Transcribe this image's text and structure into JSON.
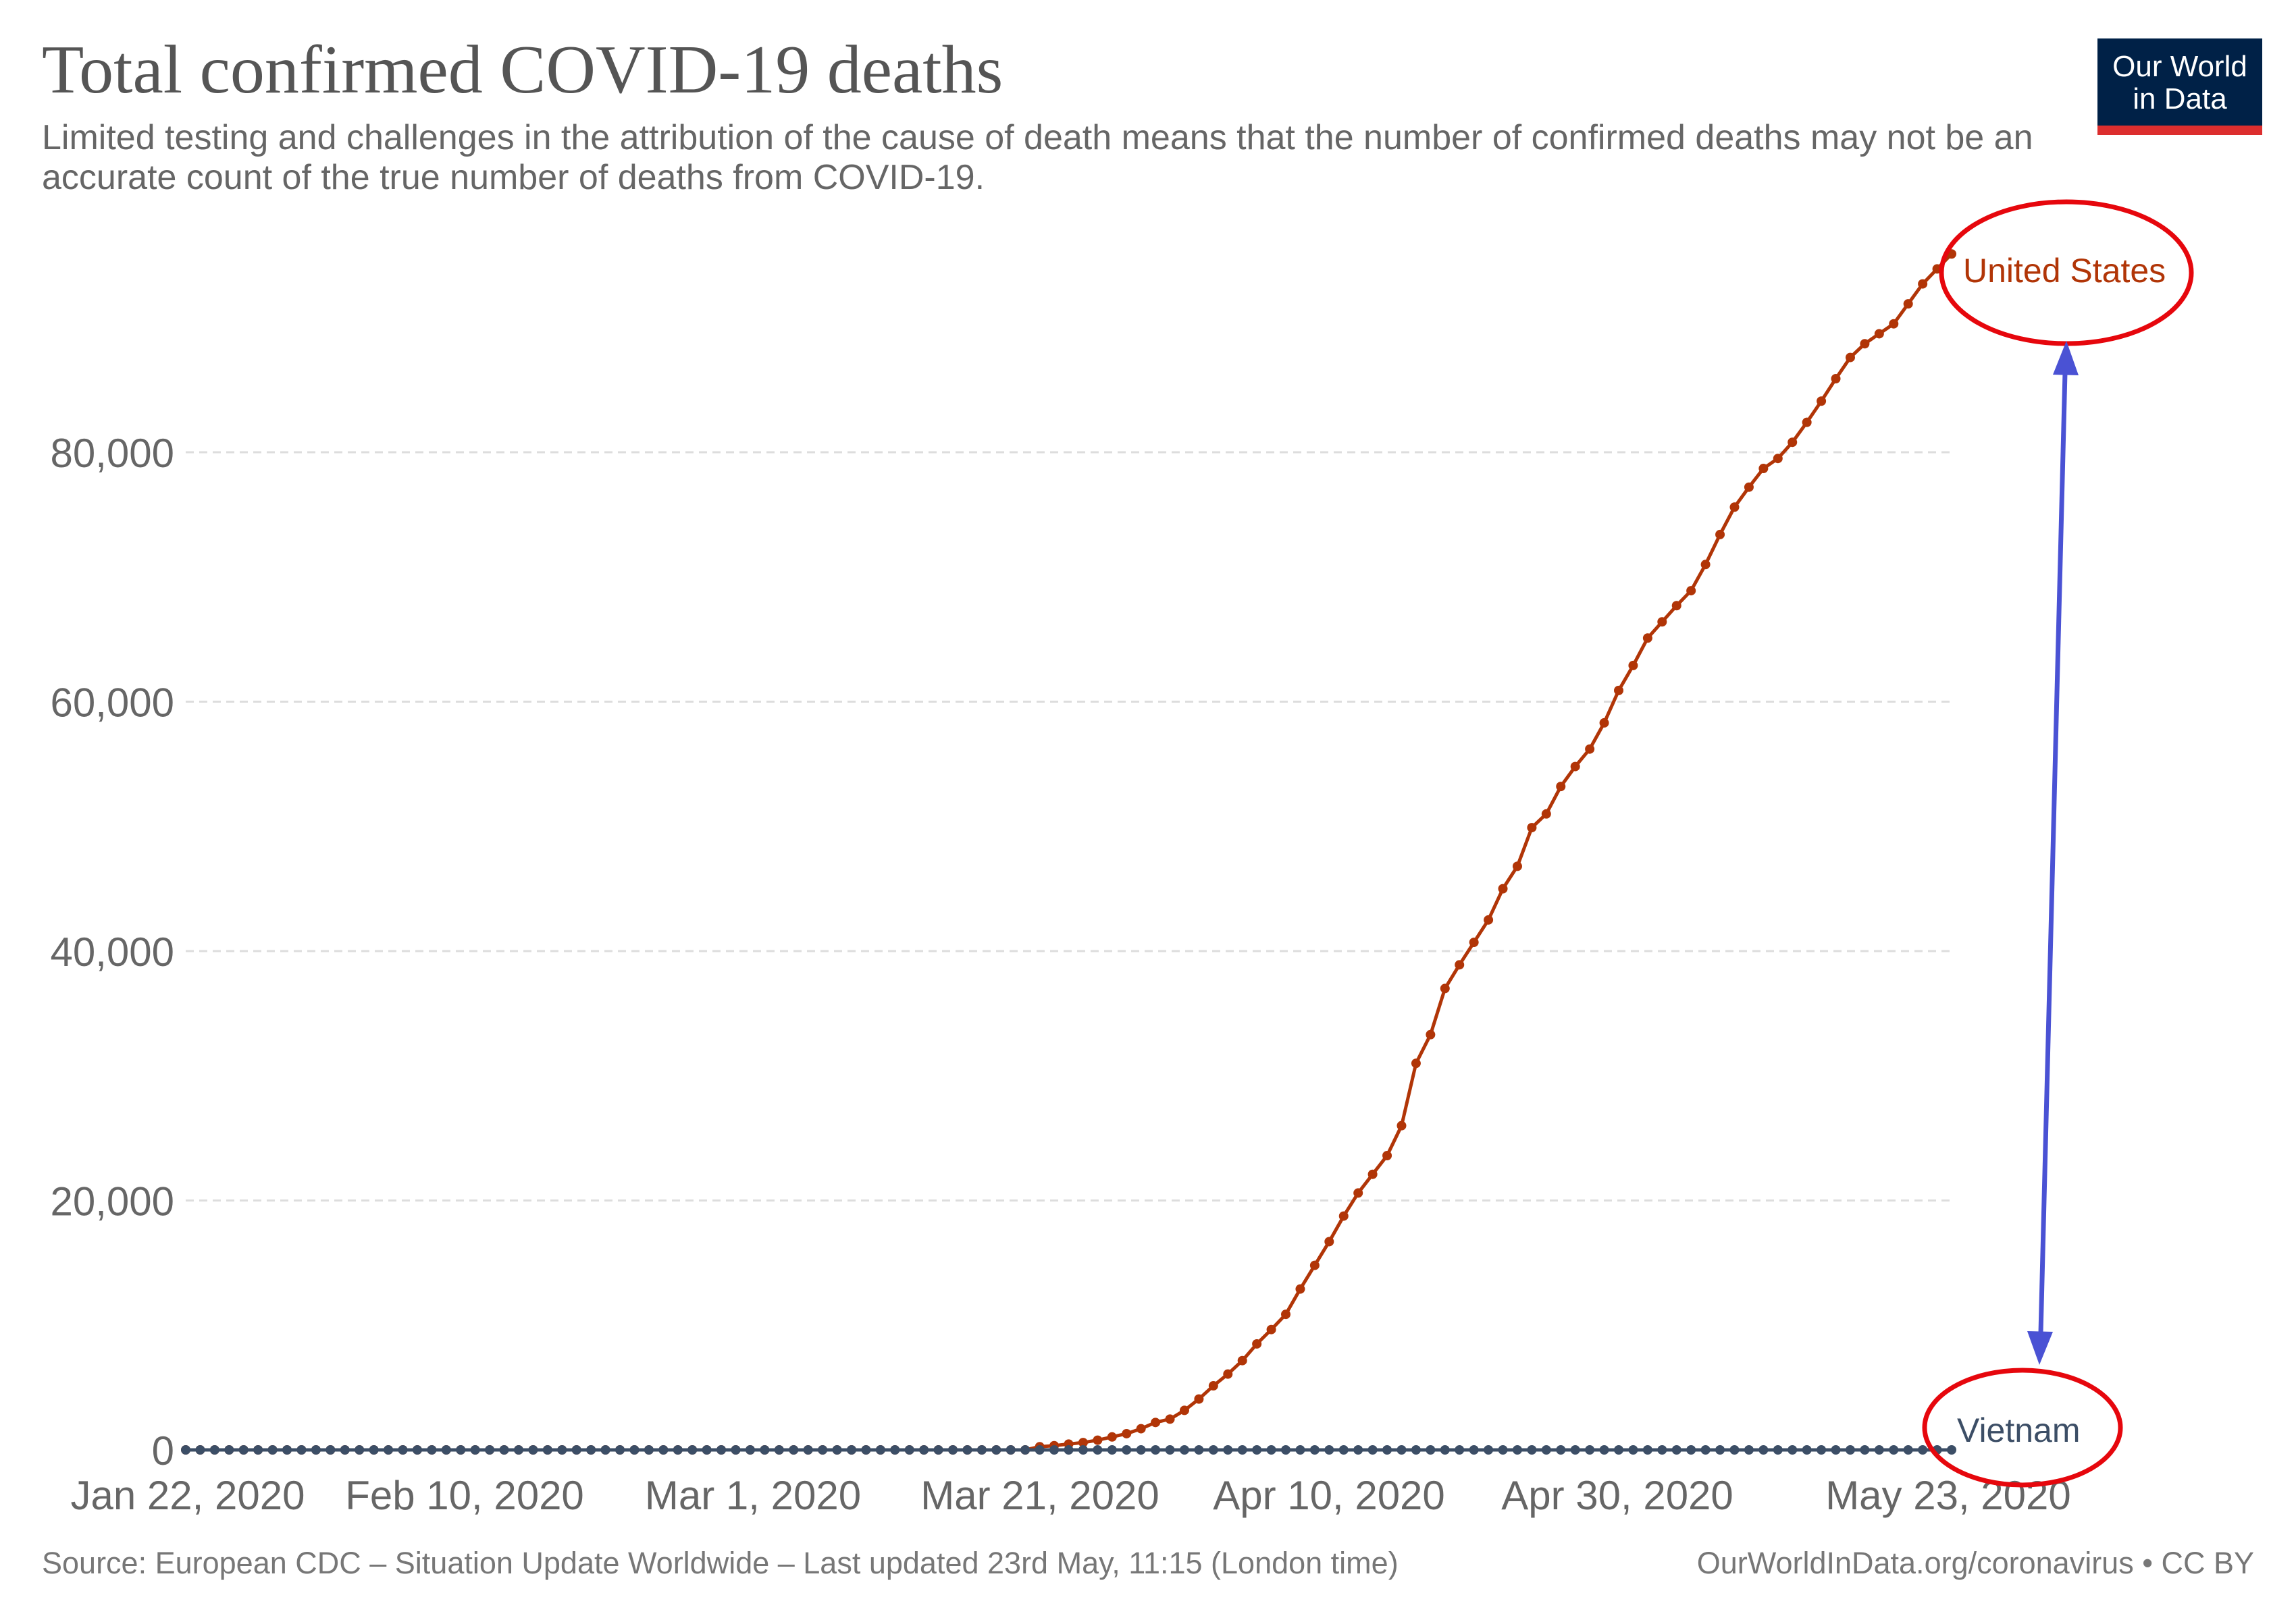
{
  "header": {
    "title": "Total confirmed COVID-19 deaths",
    "subtitle": "Limited testing and challenges in the attribution of the cause of death means that the number of confirmed deaths may not be an accurate count of the true number of deaths from COVID-19."
  },
  "logo": {
    "line1": "Our World",
    "line2": "in Data",
    "bg_color": "#002147",
    "stripe_color": "#dc2e2e"
  },
  "footer": {
    "source": "Source: European CDC – Situation Update Worldwide – Last updated 23rd May, 11:15 (London time)",
    "credit": "OurWorldInData.org/coronavirus • CC BY"
  },
  "colors": {
    "us": "#b13507",
    "vietnam": "#3c4e66",
    "annotation_circle": "#e6070d",
    "annotation_arrow": "#4a52d4",
    "grid": "#dddddd",
    "tick": "#666666"
  },
  "chart_data": {
    "type": "line",
    "title": "Total confirmed COVID-19 deaths",
    "x_start": "2020-01-22",
    "x_end": "2020-05-23",
    "x_ticks": [
      "Jan 22, 2020",
      "Feb 10, 2020",
      "Mar 1, 2020",
      "Mar 21, 2020",
      "Apr 10, 2020",
      "Apr 30, 2020",
      "May 23, 2020"
    ],
    "ylim": [
      0,
      96000
    ],
    "y_ticks": [
      0,
      20000,
      40000,
      60000,
      80000
    ],
    "y_tick_labels": [
      "0",
      "20,000",
      "40,000",
      "60,000",
      "80,000"
    ],
    "grid": "horizontal dashed",
    "series": [
      {
        "name": "United States",
        "color": "#b13507",
        "dates": [
          "2020-03-21",
          "2020-03-22",
          "2020-03-23",
          "2020-03-24",
          "2020-03-25",
          "2020-03-26",
          "2020-03-27",
          "2020-03-28",
          "2020-03-29",
          "2020-03-30",
          "2020-03-31",
          "2020-04-01",
          "2020-04-02",
          "2020-04-03",
          "2020-04-04",
          "2020-04-05",
          "2020-04-06",
          "2020-04-07",
          "2020-04-08",
          "2020-04-09",
          "2020-04-10",
          "2020-04-11",
          "2020-04-12",
          "2020-04-13",
          "2020-04-14",
          "2020-04-15",
          "2020-04-16",
          "2020-04-17",
          "2020-04-18",
          "2020-04-19",
          "2020-04-20",
          "2020-04-21",
          "2020-04-22",
          "2020-04-23",
          "2020-04-24",
          "2020-04-25",
          "2020-04-26",
          "2020-04-27",
          "2020-04-28",
          "2020-04-29",
          "2020-04-30",
          "2020-05-01",
          "2020-05-02",
          "2020-05-03",
          "2020-05-04",
          "2020-05-05",
          "2020-05-06",
          "2020-05-07",
          "2020-05-08",
          "2020-05-09",
          "2020-05-10",
          "2020-05-11",
          "2020-05-12",
          "2020-05-13",
          "2020-05-14",
          "2020-05-15",
          "2020-05-16",
          "2020-05-17",
          "2020-05-18",
          "2020-05-19",
          "2020-05-20",
          "2020-05-21",
          "2020-05-22",
          "2020-05-23"
        ],
        "values": [
          260,
          340,
          470,
          590,
          780,
          1040,
          1300,
          1700,
          2200,
          2470,
          3170,
          4080,
          5140,
          6080,
          7160,
          8500,
          9650,
          10870,
          12900,
          14800,
          16700,
          18750,
          20600,
          22100,
          23600,
          26000,
          31000,
          33300,
          37000,
          38900,
          40700,
          42500,
          45000,
          46800,
          49900,
          51000,
          53200,
          54800,
          56200,
          58300,
          60900,
          62900,
          65100,
          66400,
          67700,
          68900,
          71000,
          73400,
          75600,
          77200,
          78700,
          79500,
          80800,
          82400,
          84100,
          85900,
          87600,
          88700,
          89500,
          90300,
          91900,
          93500,
          94700,
          95900
        ]
      },
      {
        "name": "Vietnam",
        "color": "#3c4e66",
        "value_constant": 0
      }
    ],
    "annotations": [
      {
        "type": "circle",
        "target": "United States"
      },
      {
        "type": "circle",
        "target": "Vietnam"
      },
      {
        "type": "double-arrow",
        "between": [
          "United States",
          "Vietnam"
        ]
      }
    ]
  }
}
